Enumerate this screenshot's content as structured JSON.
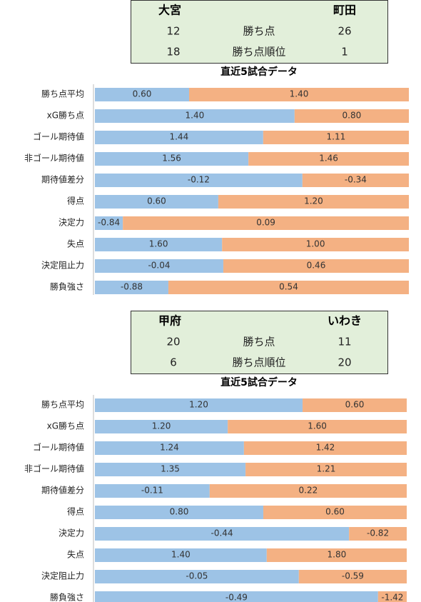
{
  "panels": [
    {
      "header": {
        "home": "大宮",
        "away": "町田",
        "rows": [
          {
            "home": "12",
            "label": "勝ち点",
            "away": "26"
          },
          {
            "home": "18",
            "label": "勝ち点順位",
            "away": "1"
          }
        ]
      },
      "title": "直近5試合データ",
      "rows": [
        {
          "label": "勝ち点平均",
          "left": "0.60",
          "right": "1.40",
          "split": 30
        },
        {
          "label": "xG勝ち点",
          "left": "1.40",
          "right": "0.80",
          "split": 63.6
        },
        {
          "label": "ゴール期待値",
          "left": "1.44",
          "right": "1.11",
          "split": 53.6
        },
        {
          "label": "非ゴール期待値",
          "left": "1.56",
          "right": "1.46",
          "split": 48.9
        },
        {
          "label": "期待値差分",
          "left": "-0.12",
          "right": "-0.34",
          "split": 66.1
        },
        {
          "label": "得点",
          "left": "0.60",
          "right": "1.20",
          "split": 39.3
        },
        {
          "label": "決定力",
          "left": "-0.84",
          "right": "0.09",
          "split": 8.9
        },
        {
          "label": "失点",
          "left": "1.60",
          "right": "1.00",
          "split": 40.5
        },
        {
          "label": "決定阻止力",
          "left": "-0.04",
          "right": "0.46",
          "split": 40.9
        },
        {
          "label": "勝負強さ",
          "left": "-0.88",
          "right": "0.54",
          "split": 23.4
        }
      ]
    },
    {
      "header": {
        "home": "甲府",
        "away": "いわき",
        "rows": [
          {
            "home": "20",
            "label": "勝ち点",
            "away": "11"
          },
          {
            "home": "6",
            "label": "勝ち点順位",
            "away": "20"
          }
        ]
      },
      "title": "直近5試合データ",
      "rows": [
        {
          "label": "勝ち点平均",
          "left": "1.20",
          "right": "0.60",
          "split": 66.6
        },
        {
          "label": "xG勝ち点",
          "left": "1.20",
          "right": "1.60",
          "split": 42.6
        },
        {
          "label": "ゴール期待値",
          "left": "1.24",
          "right": "1.42",
          "split": 47.8
        },
        {
          "label": "非ゴール期待値",
          "left": "1.35",
          "right": "1.21",
          "split": 48.3
        },
        {
          "label": "期待値差分",
          "left": "-0.11",
          "right": "0.22",
          "split": 36.8
        },
        {
          "label": "得点",
          "left": "0.80",
          "right": "0.60",
          "split": 54.0
        },
        {
          "label": "決定力",
          "left": "-0.44",
          "right": "-0.82",
          "split": 81.5
        },
        {
          "label": "失点",
          "left": "1.40",
          "right": "1.80",
          "split": 55.1
        },
        {
          "label": "決定阻止力",
          "left": "-0.05",
          "right": "-0.59",
          "split": 65.4
        },
        {
          "label": "勝負強さ",
          "left": "-0.49",
          "right": "-1.42",
          "split": 90.8
        }
      ]
    }
  ]
}
